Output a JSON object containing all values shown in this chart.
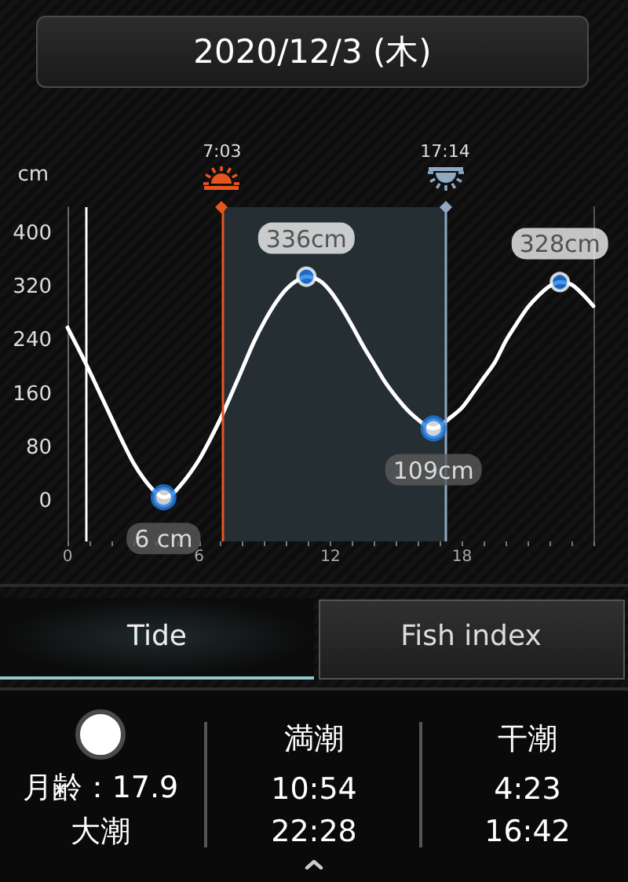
{
  "chart_data": {
    "type": "line",
    "title": "2020/12/3 (木)",
    "ylabel": "cm",
    "xlim": [
      0,
      24
    ],
    "xticks": [
      0,
      {
        "value": 1,
        "label": null
      },
      {
        "value": 2,
        "label": null
      },
      {
        "value": 3,
        "label": null
      },
      {
        "value": 4,
        "label": null
      },
      {
        "value": 5,
        "label": null
      },
      6,
      {
        "value": 7,
        "label": null
      },
      {
        "value": 8,
        "label": null
      },
      {
        "value": 9,
        "label": null
      },
      {
        "value": 10,
        "label": null
      },
      {
        "value": 11,
        "label": null
      },
      12,
      {
        "value": 13,
        "label": null
      },
      {
        "value": 14,
        "label": null
      },
      {
        "value": 15,
        "label": null
      },
      {
        "value": 16,
        "label": null
      },
      {
        "value": 17,
        "label": null
      },
      18,
      {
        "value": 19,
        "label": null
      },
      {
        "value": 20,
        "label": null
      },
      {
        "value": 21,
        "label": null
      },
      {
        "value": 22,
        "label": null
      },
      {
        "value": 23,
        "label": null
      },
      {
        "value": 24,
        "label": null
      }
    ],
    "ylim": [
      -60,
      440
    ],
    "yticks": [
      0,
      80,
      160,
      240,
      320,
      400
    ],
    "marker": "none",
    "series": [
      {
        "color": "#ffffff",
        "x": [
          0,
          0.5,
          1,
          1.5,
          2,
          2.5,
          3,
          3.5,
          4,
          4.383,
          4.75,
          5,
          5.5,
          6,
          6.5,
          7,
          7.5,
          8,
          8.5,
          9,
          9.5,
          10,
          10.5,
          10.9,
          11.5,
          12,
          12.5,
          13,
          13.5,
          14,
          14.5,
          15,
          15.5,
          16,
          16.4,
          16.7,
          17,
          17.5,
          18,
          18.5,
          19,
          19.5,
          20,
          20.5,
          21,
          21.5,
          22,
          22.467,
          23,
          23.5,
          24
        ],
        "values": [
          260,
          228,
          195,
          160,
          125,
          90,
          58,
          33,
          14,
          6,
          10,
          18,
          38,
          62,
          92,
          125,
          162,
          200,
          238,
          270,
          297,
          318,
          331,
          336,
          330,
          314,
          290,
          262,
          232,
          205,
          178,
          156,
          137,
          122,
          112,
          109,
          113,
          126,
          140,
          162,
          185,
          208,
          240,
          266,
          290,
          308,
          322,
          328,
          324,
          310,
          292
        ]
      },
      {
        "type": "scatter",
        "color": "#1e7be6",
        "marker": "circle",
        "x": [
          10.9,
          22.467
        ],
        "values": [
          336,
          328
        ],
        "value_labels": [
          "336cm",
          "328cm"
        ]
      },
      {
        "type": "scatter",
        "color": "#1e7be6",
        "marker": "circle",
        "x": [
          4.383,
          16.7
        ],
        "values": [
          6,
          109
        ],
        "value_labels": [
          "6 cm",
          "109cm"
        ]
      }
    ],
    "ref_lines": [
      {
        "axis": "x",
        "value": 0.85,
        "color": "#ffffff"
      },
      {
        "axis": "x",
        "value": 7.05,
        "label": "7:03",
        "color": "#e8541e"
      },
      {
        "axis": "x",
        "value": 17.233,
        "label": "17:14",
        "color": "#8fa8c4"
      }
    ],
    "bands": [
      {
        "axis": "x",
        "from": 7.05,
        "to": 17.233,
        "color": "#252e33"
      }
    ],
    "annotations": [
      "Tide",
      "Fish index",
      "月齢：17.9",
      "大潮",
      "満潮",
      "10:54",
      "22:28",
      "干潮",
      "4:23",
      "16:42"
    ]
  }
}
